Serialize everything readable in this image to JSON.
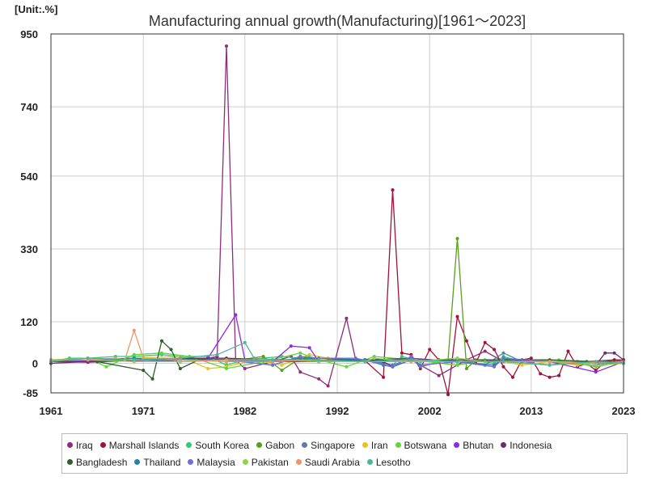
{
  "header": {
    "unit": "[Unit:.%]",
    "title": "Manufacturing annual growth(Manufacturing)[1961～2023]"
  },
  "chart_data": {
    "type": "line",
    "title": "Manufacturing annual growth(Manufacturing)[1961～2023]",
    "unit": "[Unit:.%]",
    "xlim": [
      1961,
      2023
    ],
    "ylim": [
      -85,
      950
    ],
    "x_ticks": [
      1961,
      1971,
      1982,
      1992,
      2002,
      2013,
      2023
    ],
    "y_ticks": [
      950,
      740,
      540,
      330,
      120,
      0,
      -85
    ],
    "grid": true,
    "legend_position": "bottom",
    "series": [
      {
        "name": "Iraq",
        "color": "#8e2c7e",
        "points": [
          [
            1961,
            5
          ],
          [
            1965,
            3
          ],
          [
            1970,
            8
          ],
          [
            1975,
            10
          ],
          [
            1978,
            15
          ],
          [
            1979,
            20
          ],
          [
            1980,
            915
          ],
          [
            1981,
            10
          ],
          [
            1982,
            -15
          ],
          [
            1985,
            5
          ],
          [
            1987,
            20
          ],
          [
            1988,
            -25
          ],
          [
            1990,
            -45
          ],
          [
            1991,
            -65
          ],
          [
            1993,
            130
          ],
          [
            1994,
            10
          ],
          [
            1997,
            5
          ],
          [
            2000,
            10
          ],
          [
            2003,
            -35
          ],
          [
            2006,
            10
          ],
          [
            2008,
            35
          ],
          [
            2010,
            5
          ],
          [
            2013,
            5
          ],
          [
            2016,
            5
          ],
          [
            2019,
            5
          ],
          [
            2022,
            10
          ],
          [
            2023,
            10
          ]
        ]
      },
      {
        "name": "Marshall Islands",
        "color": "#a0123a",
        "points": [
          [
            1961,
            5
          ],
          [
            1970,
            10
          ],
          [
            1980,
            12
          ],
          [
            1990,
            10
          ],
          [
            1995,
            8
          ],
          [
            1997,
            -40
          ],
          [
            1998,
            500
          ],
          [
            1999,
            30
          ],
          [
            2000,
            25
          ],
          [
            2001,
            -15
          ],
          [
            2002,
            40
          ],
          [
            2003,
            10
          ],
          [
            2004,
            -90
          ],
          [
            2005,
            135
          ],
          [
            2006,
            65
          ],
          [
            2007,
            0
          ],
          [
            2008,
            60
          ],
          [
            2009,
            40
          ],
          [
            2010,
            -10
          ],
          [
            2011,
            -40
          ],
          [
            2012,
            10
          ],
          [
            2013,
            15
          ],
          [
            2014,
            -30
          ],
          [
            2015,
            -40
          ],
          [
            2016,
            -35
          ],
          [
            2017,
            35
          ],
          [
            2018,
            -10
          ],
          [
            2019,
            0
          ],
          [
            2020,
            -20
          ],
          [
            2021,
            5
          ],
          [
            2022,
            10
          ],
          [
            2023,
            5
          ]
        ]
      },
      {
        "name": "South Korea",
        "color": "#2ecc71",
        "points": [
          [
            1961,
            5
          ],
          [
            1963,
            15
          ],
          [
            1965,
            15
          ],
          [
            1968,
            20
          ],
          [
            1970,
            20
          ],
          [
            1973,
            25
          ],
          [
            1975,
            20
          ],
          [
            1978,
            20
          ],
          [
            1980,
            -5
          ],
          [
            1982,
            10
          ],
          [
            1984,
            15
          ],
          [
            1986,
            20
          ],
          [
            1988,
            15
          ],
          [
            1990,
            10
          ],
          [
            1993,
            8
          ],
          [
            1996,
            8
          ],
          [
            1998,
            -5
          ],
          [
            1999,
            20
          ],
          [
            2001,
            5
          ],
          [
            2003,
            5
          ],
          [
            2005,
            10
          ],
          [
            2007,
            8
          ],
          [
            2009,
            0
          ],
          [
            2010,
            20
          ],
          [
            2012,
            5
          ],
          [
            2015,
            5
          ],
          [
            2018,
            5
          ],
          [
            2020,
            0
          ],
          [
            2021,
            5
          ],
          [
            2023,
            2
          ]
        ]
      },
      {
        "name": "Gabon",
        "color": "#5a9e1e",
        "points": [
          [
            1961,
            8
          ],
          [
            1965,
            5
          ],
          [
            1970,
            10
          ],
          [
            1975,
            15
          ],
          [
            1980,
            5
          ],
          [
            1984,
            20
          ],
          [
            1986,
            -20
          ],
          [
            1988,
            15
          ],
          [
            1990,
            5
          ],
          [
            1995,
            5
          ],
          [
            2000,
            10
          ],
          [
            2003,
            5
          ],
          [
            2004,
            10
          ],
          [
            2005,
            360
          ],
          [
            2006,
            -15
          ],
          [
            2007,
            10
          ],
          [
            2010,
            5
          ],
          [
            2015,
            5
          ],
          [
            2020,
            0
          ],
          [
            2023,
            5
          ]
        ]
      },
      {
        "name": "Singapore",
        "color": "#5b7fa6",
        "points": [
          [
            1961,
            5
          ],
          [
            1965,
            10
          ],
          [
            1970,
            15
          ],
          [
            1975,
            5
          ],
          [
            1980,
            10
          ],
          [
            1985,
            -5
          ],
          [
            1988,
            20
          ],
          [
            1990,
            10
          ],
          [
            1995,
            10
          ],
          [
            1998,
            -5
          ],
          [
            2000,
            15
          ],
          [
            2001,
            -10
          ],
          [
            2004,
            10
          ],
          [
            2008,
            -5
          ],
          [
            2010,
            30
          ],
          [
            2012,
            5
          ],
          [
            2015,
            -5
          ],
          [
            2018,
            5
          ],
          [
            2020,
            5
          ],
          [
            2023,
            0
          ]
        ]
      },
      {
        "name": "Iran",
        "color": "#e8c21d",
        "points": [
          [
            1961,
            10
          ],
          [
            1965,
            8
          ],
          [
            1970,
            15
          ],
          [
            1975,
            20
          ],
          [
            1978,
            -15
          ],
          [
            1980,
            -10
          ],
          [
            1983,
            10
          ],
          [
            1986,
            -5
          ],
          [
            1989,
            25
          ],
          [
            1991,
            15
          ],
          [
            1995,
            10
          ],
          [
            2000,
            10
          ],
          [
            2005,
            10
          ],
          [
            2010,
            5
          ],
          [
            2012,
            -5
          ],
          [
            2015,
            5
          ],
          [
            2018,
            -5
          ],
          [
            2020,
            5
          ],
          [
            2023,
            5
          ]
        ]
      },
      {
        "name": "Botswana",
        "color": "#5fd63a",
        "points": [
          [
            1961,
            10
          ],
          [
            1965,
            15
          ],
          [
            1967,
            -10
          ],
          [
            1970,
            25
          ],
          [
            1973,
            30
          ],
          [
            1976,
            20
          ],
          [
            1980,
            -15
          ],
          [
            1984,
            5
          ],
          [
            1988,
            30
          ],
          [
            1990,
            10
          ],
          [
            1993,
            -10
          ],
          [
            1996,
            20
          ],
          [
            2000,
            10
          ],
          [
            2005,
            -5
          ],
          [
            2008,
            10
          ],
          [
            2012,
            5
          ],
          [
            2016,
            10
          ],
          [
            2020,
            -10
          ],
          [
            2023,
            5
          ]
        ]
      },
      {
        "name": "Bhutan",
        "color": "#8a2be2",
        "points": [
          [
            1961,
            5
          ],
          [
            1970,
            10
          ],
          [
            1978,
            15
          ],
          [
            1981,
            140
          ],
          [
            1982,
            10
          ],
          [
            1985,
            5
          ],
          [
            1987,
            50
          ],
          [
            1989,
            45
          ],
          [
            1990,
            5
          ],
          [
            1995,
            10
          ],
          [
            2000,
            15
          ],
          [
            2005,
            5
          ],
          [
            2010,
            10
          ],
          [
            2015,
            5
          ],
          [
            2020,
            -25
          ],
          [
            2023,
            5
          ]
        ]
      },
      {
        "name": "Indonesia",
        "color": "#6b2d6b",
        "points": [
          [
            1961,
            0
          ],
          [
            1965,
            5
          ],
          [
            1970,
            10
          ],
          [
            1975,
            15
          ],
          [
            1980,
            15
          ],
          [
            1985,
            10
          ],
          [
            1990,
            10
          ],
          [
            1995,
            10
          ],
          [
            1997,
            5
          ],
          [
            1998,
            -10
          ],
          [
            2000,
            10
          ],
          [
            2005,
            5
          ],
          [
            2010,
            5
          ],
          [
            2015,
            5
          ],
          [
            2020,
            -5
          ],
          [
            2021,
            30
          ],
          [
            2022,
            30
          ],
          [
            2023,
            10
          ]
        ]
      },
      {
        "name": "Bangladesh",
        "color": "#2f5e2f",
        "points": [
          [
            1961,
            5
          ],
          [
            1966,
            5
          ],
          [
            1971,
            -20
          ],
          [
            1972,
            -45
          ],
          [
            1973,
            65
          ],
          [
            1974,
            40
          ],
          [
            1975,
            -15
          ],
          [
            1977,
            10
          ],
          [
            1980,
            10
          ],
          [
            1985,
            5
          ],
          [
            1990,
            5
          ],
          [
            1995,
            10
          ],
          [
            2000,
            10
          ],
          [
            2005,
            10
          ],
          [
            2010,
            10
          ],
          [
            2015,
            10
          ],
          [
            2020,
            5
          ],
          [
            2023,
            5
          ]
        ]
      },
      {
        "name": "Thailand",
        "color": "#2a7fa6",
        "points": [
          [
            1961,
            10
          ],
          [
            1965,
            10
          ],
          [
            1970,
            15
          ],
          [
            1975,
            10
          ],
          [
            1980,
            10
          ],
          [
            1985,
            5
          ],
          [
            1988,
            15
          ],
          [
            1990,
            15
          ],
          [
            1995,
            10
          ],
          [
            1997,
            -5
          ],
          [
            1998,
            -10
          ],
          [
            2000,
            10
          ],
          [
            2005,
            5
          ],
          [
            2009,
            -5
          ],
          [
            2010,
            15
          ],
          [
            2012,
            5
          ],
          [
            2015,
            5
          ],
          [
            2020,
            -5
          ],
          [
            2021,
            5
          ],
          [
            2023,
            0
          ]
        ]
      },
      {
        "name": "Malaysia",
        "color": "#6f6fd6",
        "points": [
          [
            1961,
            10
          ],
          [
            1965,
            10
          ],
          [
            1970,
            10
          ],
          [
            1975,
            5
          ],
          [
            1980,
            10
          ],
          [
            1985,
            -5
          ],
          [
            1988,
            20
          ],
          [
            1990,
            15
          ],
          [
            1994,
            15
          ],
          [
            1998,
            -10
          ],
          [
            2000,
            20
          ],
          [
            2001,
            -5
          ],
          [
            2005,
            5
          ],
          [
            2009,
            -10
          ],
          [
            2010,
            15
          ],
          [
            2015,
            5
          ],
          [
            2020,
            -5
          ],
          [
            2023,
            5
          ]
        ]
      },
      {
        "name": "Pakistan",
        "color": "#8fd14f",
        "points": [
          [
            1961,
            10
          ],
          [
            1965,
            10
          ],
          [
            1970,
            5
          ],
          [
            1975,
            5
          ],
          [
            1980,
            10
          ],
          [
            1985,
            10
          ],
          [
            1990,
            5
          ],
          [
            1995,
            5
          ],
          [
            1996,
            15
          ],
          [
            2000,
            5
          ],
          [
            2005,
            15
          ],
          [
            2008,
            5
          ],
          [
            2010,
            5
          ],
          [
            2015,
            5
          ],
          [
            2020,
            -5
          ],
          [
            2023,
            0
          ]
        ]
      },
      {
        "name": "Saudi Arabia",
        "color": "#f0956a",
        "points": [
          [
            1961,
            10
          ],
          [
            1965,
            10
          ],
          [
            1968,
            15
          ],
          [
            1969,
            10
          ],
          [
            1970,
            95
          ],
          [
            1971,
            15
          ],
          [
            1975,
            10
          ],
          [
            1980,
            5
          ],
          [
            1985,
            5
          ],
          [
            1990,
            10
          ],
          [
            1995,
            5
          ],
          [
            2000,
            5
          ],
          [
            2005,
            5
          ],
          [
            2010,
            5
          ],
          [
            2015,
            5
          ],
          [
            2020,
            0
          ],
          [
            2023,
            5
          ]
        ]
      },
      {
        "name": "Lesotho",
        "color": "#4fb59a",
        "points": [
          [
            1961,
            5
          ],
          [
            1965,
            15
          ],
          [
            1970,
            10
          ],
          [
            1975,
            15
          ],
          [
            1979,
            25
          ],
          [
            1982,
            60
          ],
          [
            1983,
            15
          ],
          [
            1985,
            10
          ],
          [
            1990,
            10
          ],
          [
            1995,
            5
          ],
          [
            2000,
            10
          ],
          [
            2005,
            5
          ],
          [
            2010,
            5
          ],
          [
            2015,
            -5
          ],
          [
            2020,
            5
          ],
          [
            2023,
            0
          ]
        ]
      }
    ]
  }
}
